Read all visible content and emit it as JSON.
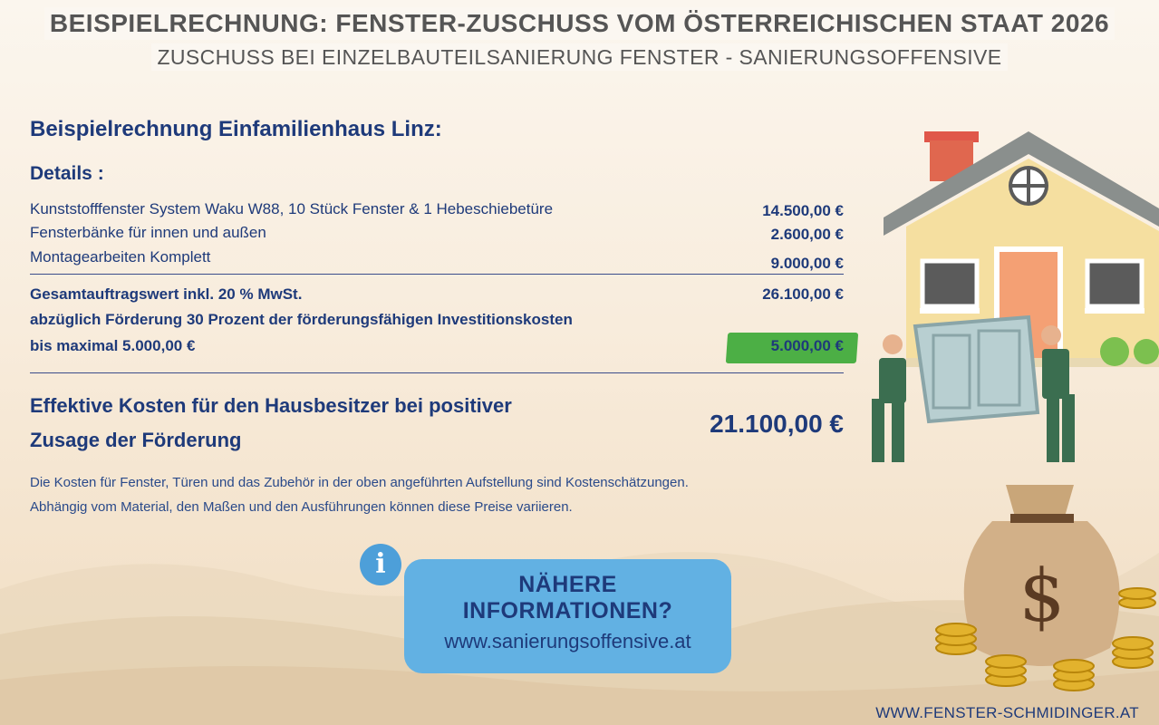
{
  "header": {
    "title": "BEISPIELRECHNUNG: FENSTER-ZUSCHUSS VOM ÖSTERREICHISCHEN STAAT 2026",
    "subtitle": "ZUSCHUSS BEI EINZELBAUTEILSANIERUNG FENSTER - SANIERUNGSOFFENSIVE"
  },
  "calc": {
    "heading": "Beispielrechnung Einfamilienhaus Linz:",
    "details_label": "Details :",
    "items": [
      {
        "label": "Kunststofffenster System Waku W88, 10 Stück Fenster & 1 Hebeschiebetüre",
        "amount": "14.500,00 €"
      },
      {
        "label": "Fensterbänke für innen und außen",
        "amount": "2.600,00 €"
      },
      {
        "label": "Montagearbeiten Komplett",
        "amount": "9.000,00 €"
      }
    ],
    "total_label": "Gesamtauftragswert inkl. 20 % MwSt.",
    "total_amount": "26.100,00 €",
    "subsidy_line1": "abzüglich Förderung 30 Prozent der förderungsfähigen Investitionskosten",
    "subsidy_line2": "bis maximal 5.000,00 €",
    "subsidy_amount": "5.000,00 €",
    "effective_line1": "Effektive Kosten für den Hausbesitzer bei positiver",
    "effective_line2": "Zusage der Förderung",
    "effective_amount": "21.100,00 €",
    "note_line1": "Die Kosten für Fenster, Türen und das Zubehör in der oben angeführten Aufstellung sind Kostenschätzungen.",
    "note_line2": "Abhängig vom Material, den Maßen und den Ausführungen können diese Preise variieren."
  },
  "info": {
    "icon": "info-icon",
    "line1": "NÄHERE",
    "line2": "INFORMATIONEN?",
    "url": "www.sanierungsoffensive.at"
  },
  "footer": {
    "url": "WWW.FENSTER-SCHMIDINGER.AT"
  },
  "colors": {
    "navy": "#1e3a7a",
    "highlight_green": "#4caf45",
    "info_blue": "#62b1e3",
    "title_gray": "#555555"
  }
}
